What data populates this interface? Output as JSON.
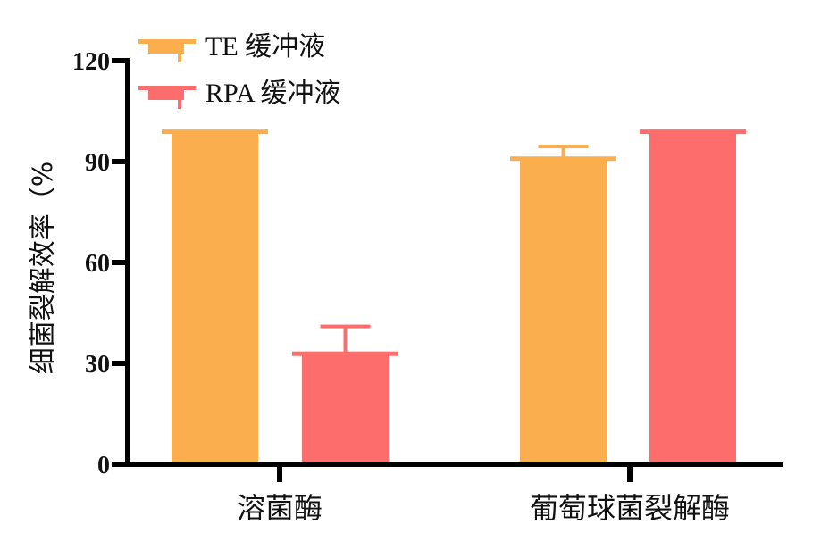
{
  "chart_data": {
    "type": "bar",
    "title": "",
    "xlabel": "",
    "ylabel": "细菌裂解效率（%",
    "ylim": [
      0,
      120
    ],
    "yticks": [
      0,
      30,
      60,
      90,
      120
    ],
    "grid": false,
    "legend_position": "top-left",
    "categories": [
      "溶菌酶",
      "葡萄球菌裂解酶"
    ],
    "series": [
      {
        "name": "TE 缓冲液",
        "color": "#FBAE4E",
        "values": [
          99,
          91
        ],
        "error_upper": [
          0,
          3.5
        ]
      },
      {
        "name": "RPA 缓冲液",
        "color": "#FD6D6C",
        "values": [
          33,
          99
        ],
        "error_upper": [
          8,
          0
        ]
      }
    ]
  },
  "axis": {
    "ylabel": "细菌裂解效率（%",
    "ytick_labels": [
      "0",
      "30",
      "60",
      "90",
      "120"
    ]
  },
  "legend": [
    {
      "label": "TE 缓冲液",
      "color": "#FBAE4E"
    },
    {
      "label": "RPA 缓冲液",
      "color": "#FD6D6C"
    }
  ]
}
